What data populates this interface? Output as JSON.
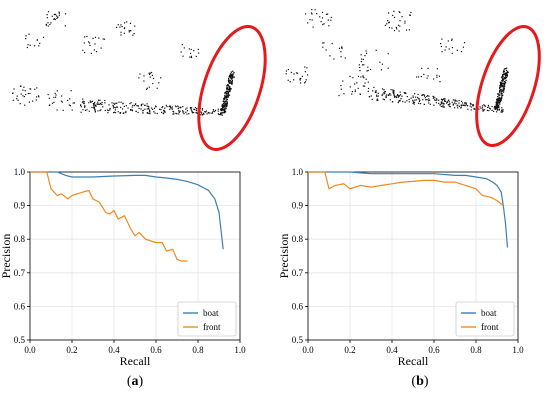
{
  "panels": [
    {
      "id": "a",
      "caption_open": "(",
      "caption_letter": "a",
      "caption_close": ")"
    },
    {
      "id": "b",
      "caption_open": "(",
      "caption_letter": "b",
      "caption_close": ")"
    }
  ],
  "colors": {
    "boat": "#3b7fb5",
    "front": "#f08a20",
    "highlight": "#e41a1c",
    "points": "#111111"
  },
  "chart_data": [
    {
      "type": "line",
      "panel": "a",
      "xlabel": "Recall",
      "ylabel": "Precision",
      "xlim": [
        0.0,
        1.0
      ],
      "ylim": [
        0.5,
        1.0
      ],
      "xticks": [
        "0.0",
        "0.2",
        "0.4",
        "0.6",
        "0.8",
        "1.0"
      ],
      "yticks": [
        "0.5",
        "0.6",
        "0.7",
        "0.8",
        "0.9",
        "1.0"
      ],
      "grid": true,
      "legend": "bottom-right",
      "series": [
        {
          "name": "boat",
          "x": [
            0.0,
            0.08,
            0.13,
            0.17,
            0.2,
            0.3,
            0.4,
            0.5,
            0.55,
            0.6,
            0.65,
            0.7,
            0.75,
            0.8,
            0.85,
            0.88,
            0.9,
            0.92
          ],
          "y": [
            1.0,
            1.0,
            1.0,
            0.99,
            0.985,
            0.985,
            0.988,
            0.99,
            0.99,
            0.985,
            0.982,
            0.978,
            0.972,
            0.962,
            0.945,
            0.92,
            0.88,
            0.77
          ]
        },
        {
          "name": "front",
          "x": [
            0.0,
            0.08,
            0.1,
            0.13,
            0.15,
            0.18,
            0.2,
            0.25,
            0.28,
            0.3,
            0.33,
            0.36,
            0.38,
            0.4,
            0.42,
            0.45,
            0.48,
            0.5,
            0.52,
            0.55,
            0.6,
            0.63,
            0.65,
            0.68,
            0.7,
            0.72,
            0.75
          ],
          "y": [
            1.0,
            1.0,
            0.95,
            0.93,
            0.935,
            0.92,
            0.93,
            0.94,
            0.945,
            0.92,
            0.91,
            0.88,
            0.875,
            0.885,
            0.86,
            0.87,
            0.83,
            0.81,
            0.82,
            0.8,
            0.79,
            0.79,
            0.765,
            0.77,
            0.74,
            0.735,
            0.735
          ]
        }
      ]
    },
    {
      "type": "line",
      "panel": "b",
      "xlabel": "Recall",
      "ylabel": "Precision",
      "xlim": [
        0.0,
        1.0
      ],
      "ylim": [
        0.5,
        1.0
      ],
      "xticks": [
        "0.0",
        "0.2",
        "0.4",
        "0.6",
        "0.8",
        "1.0"
      ],
      "yticks": [
        "0.5",
        "0.6",
        "0.7",
        "0.8",
        "0.9",
        "1.0"
      ],
      "grid": true,
      "legend": "bottom-right",
      "series": [
        {
          "name": "boat",
          "x": [
            0.0,
            0.1,
            0.2,
            0.3,
            0.4,
            0.5,
            0.6,
            0.7,
            0.75,
            0.8,
            0.85,
            0.88,
            0.9,
            0.92,
            0.93,
            0.94,
            0.95
          ],
          "y": [
            1.0,
            1.0,
            1.0,
            0.995,
            0.995,
            0.995,
            0.995,
            0.99,
            0.99,
            0.985,
            0.98,
            0.97,
            0.96,
            0.94,
            0.9,
            0.85,
            0.775
          ]
        },
        {
          "name": "front",
          "x": [
            0.0,
            0.08,
            0.1,
            0.13,
            0.17,
            0.2,
            0.25,
            0.3,
            0.35,
            0.4,
            0.45,
            0.5,
            0.55,
            0.6,
            0.65,
            0.7,
            0.75,
            0.8,
            0.83,
            0.87,
            0.9,
            0.93
          ],
          "y": [
            1.0,
            1.0,
            0.95,
            0.96,
            0.965,
            0.95,
            0.96,
            0.955,
            0.96,
            0.965,
            0.97,
            0.972,
            0.975,
            0.975,
            0.97,
            0.97,
            0.96,
            0.95,
            0.93,
            0.925,
            0.915,
            0.9
          ]
        }
      ]
    }
  ]
}
